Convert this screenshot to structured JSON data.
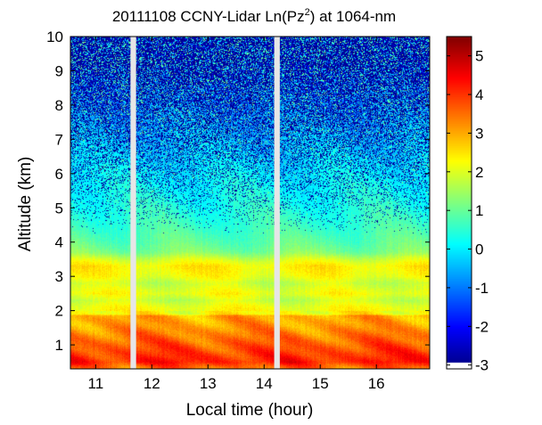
{
  "chart_data": {
    "type": "heatmap",
    "title": {
      "prefix": "20111108 CCNY-Lidar Ln(Pz",
      "superscript": "2",
      "suffix": ") at 1064-nm"
    },
    "xlabel": "Local time (hour)",
    "ylabel": "Altitude (km)",
    "xlim": [
      10.55,
      16.95
    ],
    "ylim": [
      0.3,
      10
    ],
    "xticks": [
      11,
      12,
      13,
      14,
      15,
      16
    ],
    "yticks": [
      1,
      2,
      3,
      4,
      5,
      6,
      7,
      8,
      9,
      10
    ],
    "data_gaps_hours": [
      [
        11.62,
        11.72
      ],
      [
        14.18,
        14.28
      ]
    ],
    "colorbar": {
      "min": -3.1,
      "max": 5.5,
      "ticks": [
        -3,
        -2,
        -1,
        0,
        1,
        2,
        3,
        4,
        5
      ],
      "colormap": "jet"
    },
    "profile_altitude_km": [
      0.3,
      0.5,
      0.8,
      1.1,
      1.4,
      1.6,
      1.85,
      1.9,
      2.1,
      2.3,
      2.5,
      2.8,
      3.0,
      3.3,
      3.5,
      3.7,
      4.0,
      4.5,
      5.0,
      6.0,
      7.0,
      8.0,
      9.0,
      10.0
    ],
    "profile_ln_pz2": [
      3.4,
      4.2,
      3.9,
      3.6,
      3.3,
      3.1,
      3.0,
      2.3,
      2.2,
      1.8,
      2.2,
      1.8,
      2.2,
      2.4,
      1.9,
      1.2,
      0.9,
      0.6,
      0.4,
      0.05,
      -0.4,
      -0.9,
      -1.4,
      -1.9
    ],
    "noise_onset_km": 4.2,
    "noise_strength_at_top": 0.92
  }
}
